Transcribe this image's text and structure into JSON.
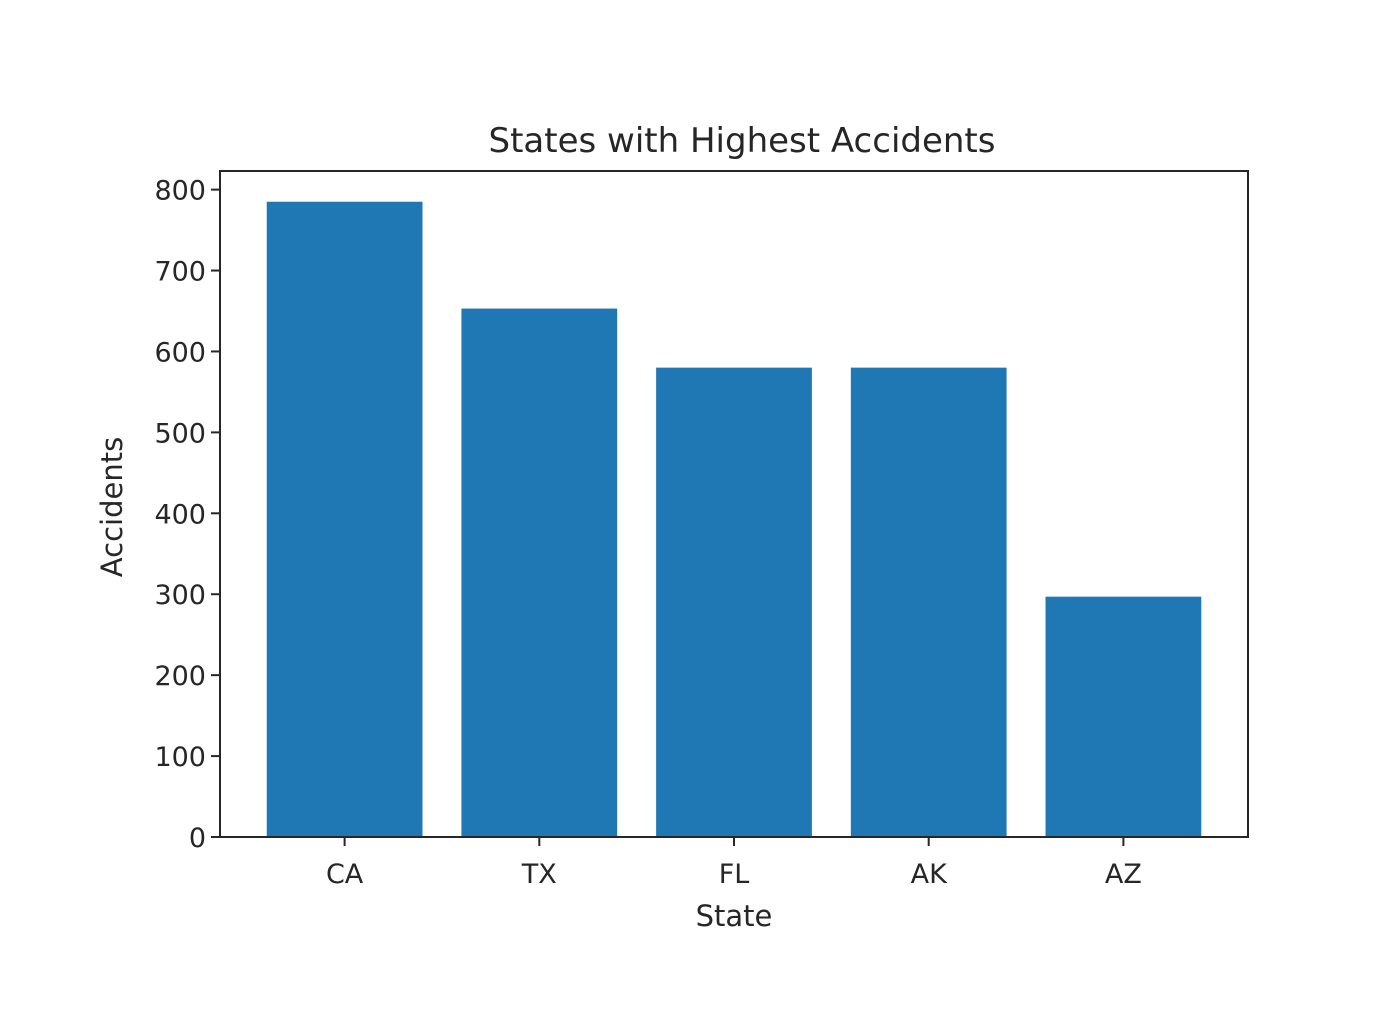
{
  "chart_data": {
    "type": "bar",
    "title": "States with Highest Accidents",
    "xlabel": "State",
    "ylabel": "Accidents",
    "categories": [
      "CA",
      "TX",
      "FL",
      "AK",
      "AZ"
    ],
    "values": [
      785,
      653,
      580,
      580,
      297
    ],
    "ylim": [
      0,
      823
    ],
    "yticks": [
      "0",
      "100",
      "200",
      "300",
      "400",
      "500",
      "600",
      "700",
      "800"
    ],
    "grid": false,
    "bar_color": "#1f77b4"
  }
}
